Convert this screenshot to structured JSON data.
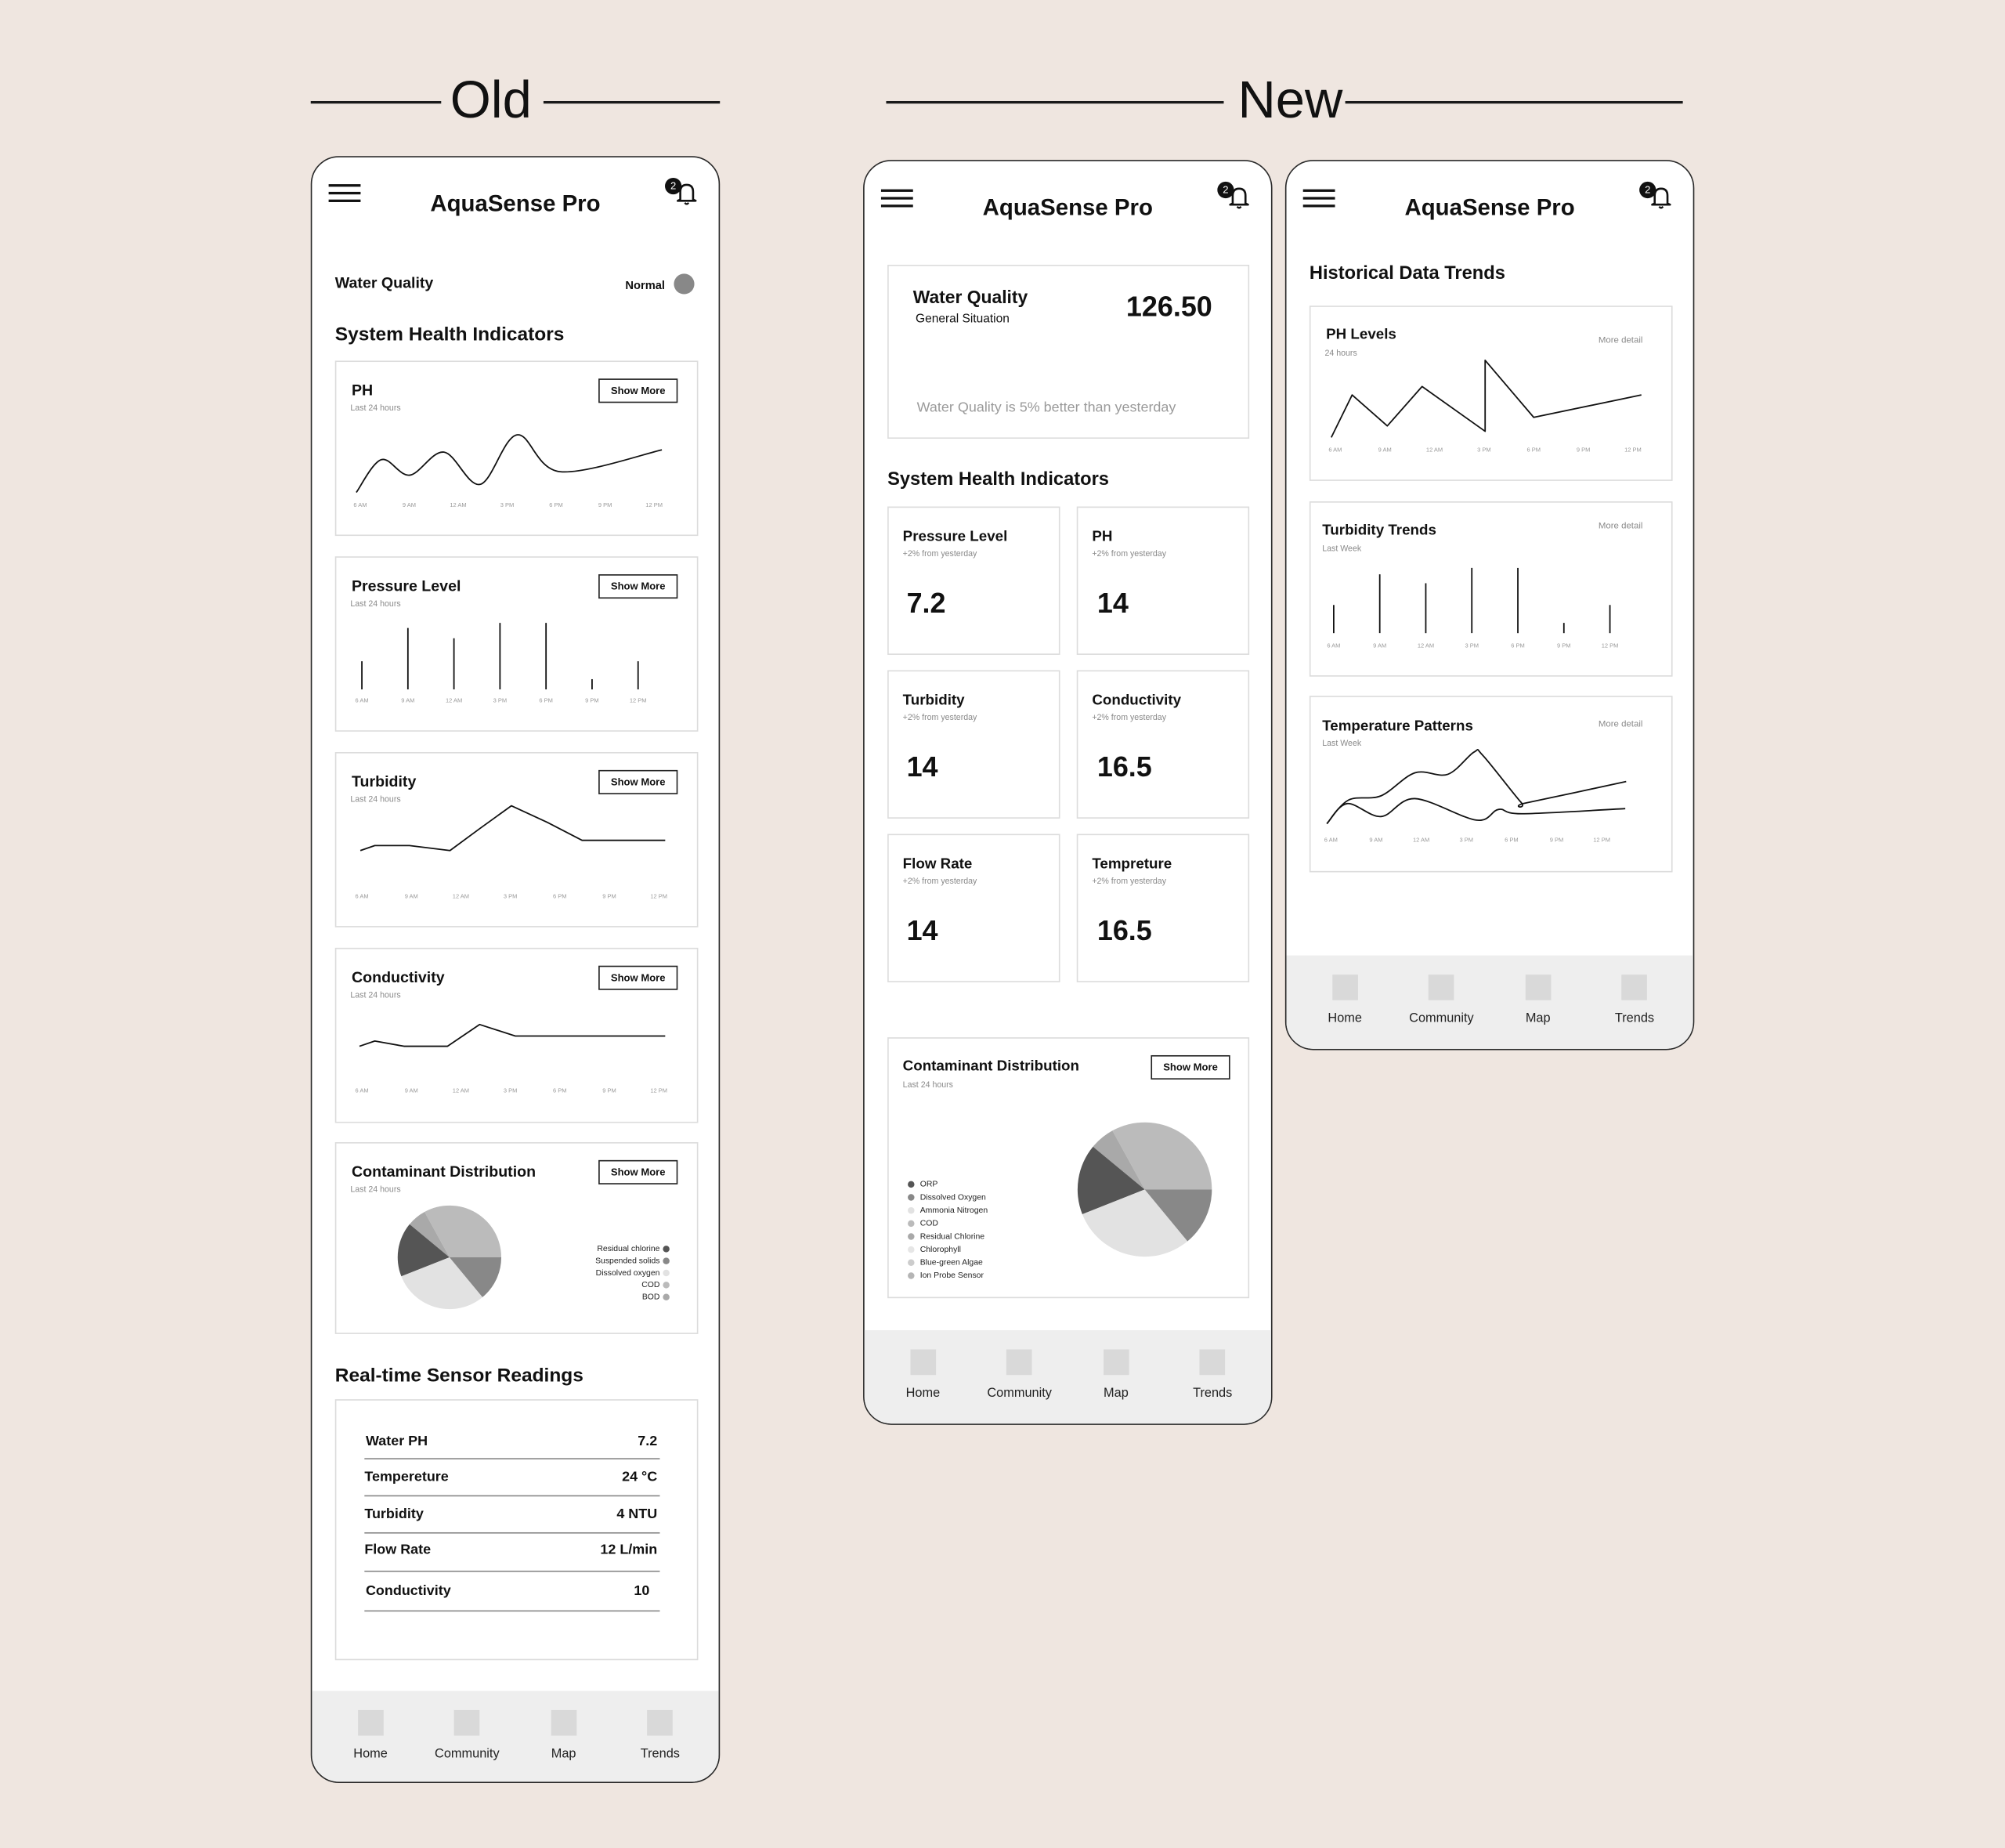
{
  "headings": {
    "old": "Old",
    "new": "New"
  },
  "app_title": "AquaSense Pro",
  "notification_count": "2",
  "nav": [
    "Home",
    "Community",
    "Map",
    "Trends"
  ],
  "show_more_label": "Show More",
  "more_detail_label": "More detail",
  "old": {
    "water_quality_label": "Water Quality",
    "water_quality_status": "Normal",
    "status_color": "#888888",
    "system_health_title": "System Health Indicators",
    "sensor_readings_title": "Real-time Sensor Readings",
    "sensor_readings": [
      {
        "label": "Water PH",
        "value": "7.2"
      },
      {
        "label": "Tempereture",
        "value": "24 °C"
      },
      {
        "label": "Turbidity",
        "value": "4 NTU"
      },
      {
        "label": "Flow Rate",
        "value": "12 L/min"
      },
      {
        "label": "Conductivity",
        "value": "10"
      }
    ]
  },
  "new_home": {
    "water_quality": {
      "title": "Water Quality",
      "subtitle": "General Situation",
      "score": "126.50",
      "note": "Water Quality is 5% better than yesterday"
    },
    "system_health_title": "System Health Indicators",
    "metrics": [
      {
        "title": "Pressure Level",
        "change": "+2% from yesterday",
        "value": "7.2"
      },
      {
        "title": "PH",
        "change": "+2% from yesterday",
        "value": "14"
      },
      {
        "title": "Turbidity",
        "change": "+2% from yesterday",
        "value": "14"
      },
      {
        "title": "Conductivity",
        "change": "+2% from yesterday",
        "value": "16.5"
      },
      {
        "title": "Flow Rate",
        "change": "+2% from yesterday",
        "value": "14"
      },
      {
        "title": "Tempreture",
        "change": "+2% from yesterday",
        "value": "16.5"
      }
    ]
  },
  "new_trends": {
    "title": "Historical Data Trends"
  },
  "chart_data": [
    {
      "type": "line",
      "title": "PH",
      "subtitle": "Last 24 hours",
      "smooth": true,
      "x_ticks": [
        "6 AM",
        "9 AM",
        "12 AM",
        "3 PM",
        "6 PM",
        "9 PM",
        "12 PM"
      ],
      "series": [
        {
          "points": [
            [
              -0.08,
              0
            ],
            [
              0.43,
              57
            ],
            [
              1.01,
              30
            ],
            [
              1.71,
              70
            ],
            [
              2.45,
              14
            ],
            [
              3.2,
              100
            ],
            [
              4.08,
              36
            ],
            [
              6.16,
              74
            ]
          ]
        }
      ]
    },
    {
      "type": "bar",
      "title": "Pressure Level",
      "subtitle": "Last 24 hours",
      "categories": [
        "6 AM",
        "9 AM",
        "12 AM",
        "3 PM",
        "6 PM",
        "9 PM",
        "12 PM"
      ],
      "values": [
        22,
        48,
        40,
        52,
        52,
        8,
        22
      ]
    },
    {
      "type": "line",
      "title": "Turbidity",
      "subtitle": "Last 24 hours",
      "smooth": false,
      "x_ticks": [
        "6 AM",
        "9 AM",
        "12 AM",
        "3 PM",
        "6 PM",
        "9 PM",
        "12 PM"
      ],
      "series": [
        {
          "points": [
            [
              -0.03,
              0
            ],
            [
              0.26,
              11
            ],
            [
              0.96,
              11
            ],
            [
              1.78,
              0
            ],
            [
              2.38,
              49
            ],
            [
              3.02,
              100
            ],
            [
              3.75,
              63
            ],
            [
              4.45,
              23
            ],
            [
              6.13,
              23
            ]
          ]
        }
      ]
    },
    {
      "type": "line",
      "title": "Conductivity",
      "subtitle": "Last 24 hours",
      "smooth": false,
      "x_ticks": [
        "6 AM",
        "9 AM",
        "12 AM",
        "3 PM",
        "6 PM",
        "9 PM",
        "12 PM"
      ],
      "series": [
        {
          "points": [
            [
              -0.05,
              0
            ],
            [
              0.26,
              24
            ],
            [
              0.85,
              0
            ],
            [
              1.73,
              0
            ],
            [
              2.38,
              100
            ],
            [
              3.1,
              47
            ],
            [
              6.13,
              47
            ]
          ]
        }
      ]
    },
    {
      "type": "pie",
      "title": "Contaminant Distribution",
      "subtitle": "Last 24 hours",
      "slices": [
        {
          "label": "COD",
          "value": 33,
          "color": "#bbbbbb"
        },
        {
          "label": "BOD",
          "value": 6,
          "color": "#a9a9a9"
        },
        {
          "label": "Residual chlorine",
          "value": 17,
          "color": "#555555"
        },
        {
          "label": "Dissolved oxygen",
          "value": 30,
          "color": "#e2e2e2"
        },
        {
          "label": "Suspended solids",
          "value": 14,
          "color": "#888888"
        }
      ],
      "legend": [
        {
          "label": "Residual chlorine",
          "color": "#555555"
        },
        {
          "label": "Suspended solids",
          "color": "#888888"
        },
        {
          "label": "Dissolved oxygen",
          "color": "#e2e2e2"
        },
        {
          "label": "COD",
          "color": "#bbbbbb"
        },
        {
          "label": "BOD",
          "color": "#a9a9a9"
        }
      ],
      "legend_position": "right"
    },
    {
      "type": "pie",
      "title": "Contaminant Distribution",
      "subtitle": "Last 24 hours",
      "slices": [
        {
          "label": "COD",
          "value": 33,
          "color": "#bbbbbb"
        },
        {
          "label": "Residual Chlorine",
          "value": 6,
          "color": "#a9a9a9"
        },
        {
          "label": "ORP",
          "value": 17,
          "color": "#555555"
        },
        {
          "label": "Ammonia Nitrogen",
          "value": 30,
          "color": "#e2e2e2"
        },
        {
          "label": "Dissolved Oxygen",
          "value": 14,
          "color": "#888888"
        }
      ],
      "legend": [
        {
          "label": "ORP",
          "color": "#555555"
        },
        {
          "label": "Dissolved Oxygen",
          "color": "#888888"
        },
        {
          "label": "Ammonia Nitrogen",
          "color": "#e2e2e2"
        },
        {
          "label": "COD",
          "color": "#bbbbbb"
        },
        {
          "label": "Residual Chlorine",
          "color": "#a9a9a9"
        },
        {
          "label": "Chlorophyll",
          "color": "#e6e6e6"
        },
        {
          "label": "Blue-green Algae",
          "color": "#cccccc"
        },
        {
          "label": "Ion Probe Sensor",
          "color": "#b5b5b5"
        }
      ],
      "legend_position": "left"
    },
    {
      "type": "line",
      "title": "PH Levels",
      "subtitle": "24 hours",
      "smooth": false,
      "x_ticks": [
        "6 AM",
        "9 AM",
        "12 AM",
        "3 PM",
        "6 PM",
        "9 PM",
        "12 PM"
      ],
      "series": [
        {
          "points": [
            [
              -0.08,
              0
            ],
            [
              0.34,
              55
            ],
            [
              1.05,
              15
            ],
            [
              1.75,
              66
            ],
            [
              3.02,
              8
            ],
            [
              3.02,
              100
            ],
            [
              4.0,
              26
            ],
            [
              6.17,
              55
            ]
          ]
        }
      ]
    },
    {
      "type": "bar",
      "title": "Turbidity Trends",
      "subtitle": "Last Week",
      "categories": [
        "6 AM",
        "9 AM",
        "12 AM",
        "3 PM",
        "6 PM",
        "9 PM",
        "12 PM"
      ],
      "values": [
        22,
        46,
        39,
        51,
        51,
        8,
        22
      ]
    },
    {
      "type": "line",
      "title": "Temperature Patterns",
      "subtitle": "Last Week",
      "smooth": true,
      "x_ticks": [
        "6 AM",
        "9 AM",
        "12 AM",
        "3 PM",
        "6 PM",
        "9 PM",
        "12 PM"
      ],
      "series": [
        {
          "points": [
            [
              -0.09,
              0
            ],
            [
              0.39,
              33
            ],
            [
              1.11,
              39
            ],
            [
              1.86,
              71
            ],
            [
              2.59,
              69
            ],
            [
              3.17,
              100
            ],
            [
              3.37,
              95
            ],
            [
              4.21,
              30
            ],
            [
              4.32,
              29
            ],
            [
              6.54,
              59
            ]
          ]
        },
        {
          "points": [
            [
              -0.09,
              0
            ],
            [
              0.36,
              28
            ],
            [
              1.11,
              10
            ],
            [
              1.86,
              35
            ],
            [
              3.22,
              5
            ],
            [
              3.72,
              20
            ],
            [
              4.24,
              14
            ],
            [
              6.52,
              21
            ]
          ]
        }
      ]
    }
  ]
}
